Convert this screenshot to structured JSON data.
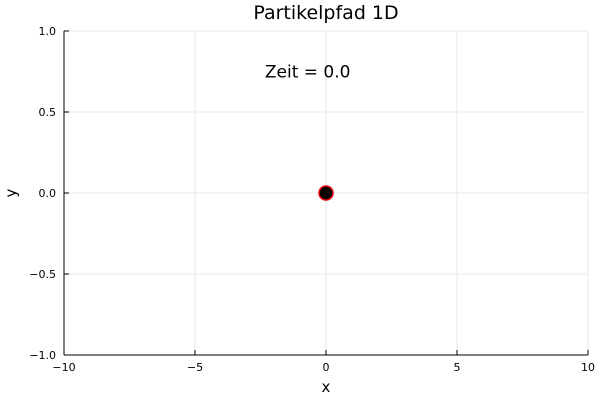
{
  "chart_data": {
    "type": "scatter",
    "title": "Partikelpfad 1D",
    "xlabel": "x",
    "ylabel": "y",
    "xlim": [
      -10,
      10
    ],
    "ylim": [
      -1,
      1
    ],
    "grid": true,
    "x_ticks": [
      -10,
      -5,
      0,
      5,
      10
    ],
    "x_tick_labels": [
      "−10",
      "−5",
      "0",
      "5",
      "10"
    ],
    "y_ticks": [
      -1,
      -0.5,
      0,
      0.5,
      1
    ],
    "y_tick_labels": [
      "−1.0",
      "−0.5",
      "0.0",
      "0.5",
      "1.0"
    ],
    "points": [
      {
        "x": 0,
        "y": 0,
        "fill": "#000000",
        "stroke": "#e8000b"
      }
    ],
    "annotation": {
      "text": "Zeit = 0.0",
      "x": -0.7,
      "y": 0.75
    }
  }
}
